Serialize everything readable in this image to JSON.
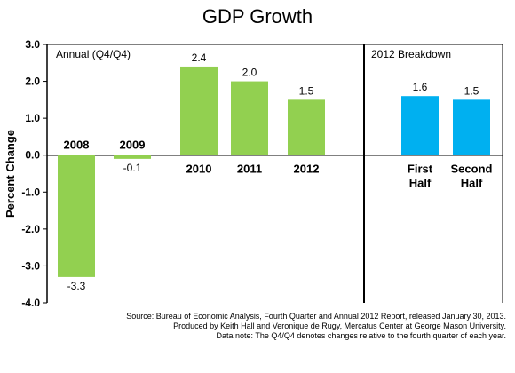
{
  "chart_data": {
    "type": "bar",
    "title": "GDP Growth",
    "ylabel": "Percent Change",
    "xlabel": "",
    "ylim": [
      -4.0,
      3.0
    ],
    "yticks": [
      "3.0",
      "2.0",
      "1.0",
      "0.0",
      "-1.0",
      "-2.0",
      "-3.0",
      "-4.0"
    ],
    "ytick_values": [
      3,
      2,
      1,
      0,
      -1,
      -2,
      -3,
      -4
    ],
    "grid": false,
    "panels": [
      {
        "label": "Annual (Q4/Q4)"
      },
      {
        "label": "2012 Breakdown"
      }
    ],
    "bars": [
      {
        "category": "2008",
        "value": -3.3,
        "value_label": "-3.3",
        "panel": 0,
        "color": "#92d050"
      },
      {
        "category": "2009",
        "value": -0.1,
        "value_label": "-0.1",
        "panel": 0,
        "color": "#92d050"
      },
      {
        "category": "2010",
        "value": 2.4,
        "value_label": "2.4",
        "panel": 0,
        "color": "#92d050"
      },
      {
        "category": "2011",
        "value": 2.0,
        "value_label": "2.0",
        "panel": 0,
        "color": "#92d050"
      },
      {
        "category": "2012",
        "value": 1.5,
        "value_label": "1.5",
        "panel": 0,
        "color": "#92d050"
      },
      {
        "category": "First Half",
        "category_lines": [
          "First",
          "Half"
        ],
        "value": 1.6,
        "value_label": "1.6",
        "panel": 1,
        "color": "#00b0f0"
      },
      {
        "category": "Second Half",
        "category_lines": [
          "Second",
          "Half"
        ],
        "value": 1.5,
        "value_label": "1.5",
        "panel": 1,
        "color": "#00b0f0"
      }
    ]
  },
  "source_lines": [
    "Source: Bureau of Economic Analysis, Fourth Quarter and Annual 2012 Report, released January 30, 2013.",
    "Produced by Keith Hall and Veronique de Rugy, Mercatus Center at George Mason University.",
    "Data note: The Q4/Q4 denotes changes relative to the fourth quarter of each year."
  ]
}
